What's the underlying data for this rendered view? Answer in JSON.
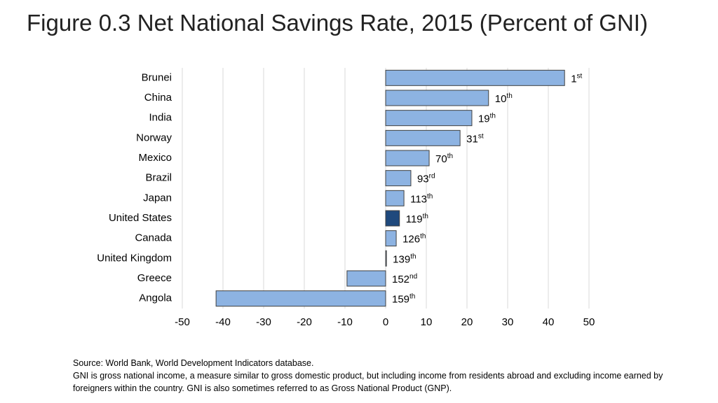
{
  "chart_data": {
    "type": "bar",
    "orientation": "horizontal",
    "title": "Figure 0.3 Net National Savings Rate, 2015 (Percent of GNI)",
    "categories": [
      "Brunei",
      "China",
      "India",
      "Norway",
      "Mexico",
      "Brazil",
      "Japan",
      "United States",
      "Canada",
      "United Kingdom",
      "Greece",
      "Angola"
    ],
    "values": [
      44,
      25.3,
      21.2,
      18.3,
      10.7,
      6.2,
      4.5,
      3.4,
      2.6,
      0.2,
      -9.5,
      -41.7
    ],
    "colors": [
      "#8db3e2",
      "#8db3e2",
      "#8db3e2",
      "#8db3e2",
      "#8db3e2",
      "#8db3e2",
      "#8db3e2",
      "#1f497d",
      "#8db3e2",
      "#8db3e2",
      "#8db3e2",
      "#8db3e2"
    ],
    "ranks": [
      1,
      10,
      19,
      31,
      70,
      93,
      113,
      119,
      126,
      139,
      152,
      159
    ],
    "rank_suffixes": [
      "st",
      "th",
      "th",
      "st",
      "th",
      "rd",
      "th",
      "th",
      "th",
      "th",
      "nd",
      "th"
    ],
    "xlim": [
      -50,
      50
    ],
    "xticks": [
      -50,
      -40,
      -30,
      -20,
      -10,
      0,
      10,
      20,
      30,
      40,
      50
    ],
    "grid": true,
    "source": "Source: World Bank, World Development Indicators database.",
    "note": "GNI is gross national income, a measure similar to gross domestic product, but including income from residents abroad and excluding income earned by foreigners within the country. GNI is also sometimes referred to as Gross National Product (GNP)."
  }
}
